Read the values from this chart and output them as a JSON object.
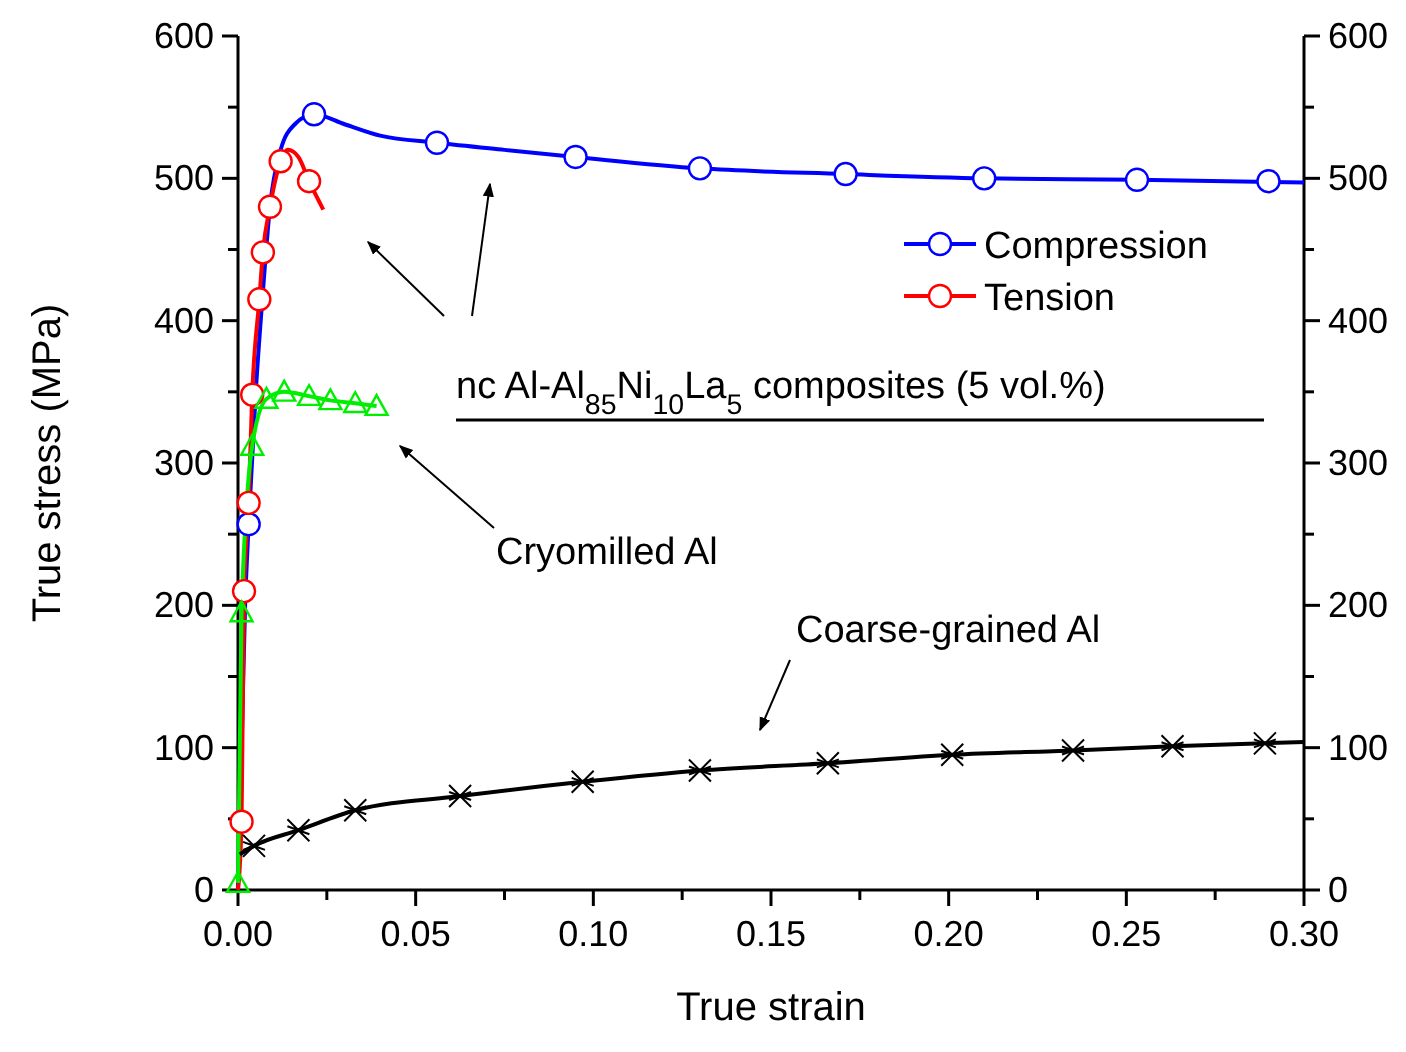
{
  "chart_data": {
    "type": "line",
    "xlabel": "True strain",
    "ylabel": "True stress (MPa)",
    "xlim": [
      0,
      0.3
    ],
    "ylim": [
      0,
      600
    ],
    "y2lim": [
      0,
      600
    ],
    "xticks": [
      {
        "value": 0,
        "label": "0.00"
      },
      {
        "value": 0.025,
        "label": null
      },
      {
        "value": 0.05,
        "label": "0.05"
      },
      {
        "value": 0.075,
        "label": null
      },
      {
        "value": 0.1,
        "label": "0.10"
      },
      {
        "value": 0.125,
        "label": null
      },
      {
        "value": 0.15,
        "label": "0.15"
      },
      {
        "value": 0.175,
        "label": null
      },
      {
        "value": 0.2,
        "label": "0.20"
      },
      {
        "value": 0.225,
        "label": null
      },
      {
        "value": 0.25,
        "label": "0.25"
      },
      {
        "value": 0.275,
        "label": null
      },
      {
        "value": 0.3,
        "label": "0.30"
      }
    ],
    "yticks": [
      0,
      {
        "value": 50,
        "label": null
      },
      100,
      {
        "value": 150,
        "label": null
      },
      200,
      {
        "value": 250,
        "label": null
      },
      300,
      {
        "value": 350,
        "label": null
      },
      400,
      {
        "value": 450,
        "label": null
      },
      500,
      {
        "value": 550,
        "label": null
      },
      600
    ],
    "y2ticks": [
      0,
      {
        "value": 50,
        "label": null
      },
      100,
      {
        "value": 150,
        "label": null
      },
      200,
      {
        "value": 250,
        "label": null
      },
      300,
      {
        "value": 350,
        "label": null
      },
      400,
      {
        "value": 450,
        "label": null
      },
      500,
      {
        "value": 550,
        "label": null
      },
      600
    ],
    "grid": false,
    "legend": "top right",
    "annotations": [
      "nc Al-Al$_{85}$Ni$_{10}$La$_{5}$ composites (5 vol.%)",
      "Cryomilled Al",
      "Coarse-grained Al"
    ],
    "series": [
      {
        "name": "Compression",
        "color": "#0000ff",
        "marker": "none",
        "x": [
          0,
          0.001,
          0.002,
          0.003,
          0.005,
          0.007,
          0.009,
          0.012,
          0.016,
          0.0214,
          0.03,
          0.04,
          0.056,
          0.075,
          0.095,
          0.13,
          0.171,
          0.21,
          0.253,
          0.3
        ],
        "values": [
          0,
          100,
          200,
          257,
          350,
          420,
          480,
          520,
          538,
          545,
          538,
          530,
          525,
          520,
          515,
          507,
          503,
          500,
          499,
          497
        ]
      },
      {
        "type": "scatter",
        "color": "#0000ff",
        "marker": "circle",
        "x": [
          0.003,
          0.0214,
          0.056,
          0.095,
          0.13,
          0.171,
          0.21,
          0.253,
          0.29
        ],
        "values": [
          257,
          545,
          525,
          515,
          507,
          503,
          500,
          499,
          498
        ]
      },
      {
        "name": "Tension",
        "color": "#ff0000",
        "marker": "none",
        "x": [
          0,
          0.001,
          0.0017,
          0.003,
          0.004,
          0.006,
          0.007,
          0.009,
          0.012,
          0.014,
          0.017,
          0.02,
          0.024
        ],
        "values": [
          0,
          48,
          210,
          272,
          348,
          415,
          448,
          480,
          512,
          520,
          515,
          498,
          478
        ]
      },
      {
        "type": "scatter",
        "color": "#ff0000",
        "marker": "circle",
        "x": [
          0.001,
          0.0017,
          0.003,
          0.004,
          0.006,
          0.007,
          0.009,
          0.012,
          0.02
        ],
        "values": [
          48,
          210,
          272,
          348,
          415,
          448,
          480,
          512,
          498
        ]
      },
      {
        "color": "#00ee00",
        "marker": "triangle",
        "x": [
          0,
          0.001,
          0.004,
          0.008,
          0.013,
          0.02,
          0.026,
          0.033,
          0.039
        ],
        "values": [
          5,
          195,
          312,
          345,
          350,
          347,
          344,
          342,
          340
        ]
      },
      {
        "color": "#000000",
        "marker": "none",
        "x": [
          0.0005,
          0.0045,
          0.017,
          0.033,
          0.0625,
          0.097,
          0.13,
          0.166,
          0.201,
          0.235,
          0.263,
          0.3
        ],
        "values": [
          25,
          31,
          42,
          56,
          66,
          76,
          84,
          89,
          95,
          98,
          101,
          104
        ]
      },
      {
        "type": "scatter",
        "color": "#000000",
        "marker": "cross",
        "x": [
          0.0045,
          0.017,
          0.033,
          0.0625,
          0.097,
          0.13,
          0.166,
          0.201,
          0.235,
          0.263,
          0.289
        ],
        "values": [
          31,
          42,
          56,
          66,
          76,
          84,
          89,
          95,
          98,
          101,
          103
        ]
      }
    ]
  }
}
